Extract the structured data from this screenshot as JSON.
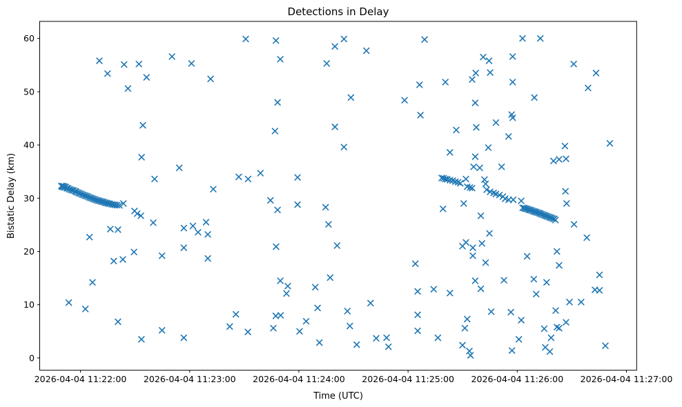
{
  "figure": {
    "title": "Detections in Delay"
  },
  "chart_data": {
    "type": "scatter",
    "title": "Detections in Delay",
    "xlabel": "Time (UTC)",
    "ylabel": "Bistatic Delay (km)",
    "grid": false,
    "legend": null,
    "marker": {
      "style": "x",
      "color": "#1f77b4",
      "size": 9,
      "stroke_width": 1.6
    },
    "x_axis": {
      "unit": "seconds after 2026-04-04 11:22:00 UTC",
      "tick_seconds": [
        0,
        60,
        120,
        180,
        240,
        300
      ],
      "tick_labels": [
        "2026-04-04 11:22:00",
        "2026-04-04 11:23:00",
        "2026-04-04 11:24:00",
        "2026-04-04 11:25:00",
        "2026-04-04 11:26:00",
        "2026-04-04 11:27:00"
      ],
      "lim_seconds": [
        -22.4,
        305.6
      ]
    },
    "y_axis": {
      "ticks": [
        0,
        10,
        20,
        30,
        40,
        50,
        60
      ],
      "tick_labels": [
        "0",
        "10",
        "20",
        "30",
        "40",
        "50",
        "60"
      ],
      "lim": [
        -2.3,
        63.2
      ]
    },
    "series": [
      {
        "name": "detections",
        "points_format": "[seconds_after_11:22:00, bistatic_delay_km]",
        "points": [
          [
            -10.5,
            32.3
          ],
          [
            -10.1,
            32.15
          ],
          [
            -9.7,
            32.3
          ],
          [
            -9.3,
            32.1
          ],
          [
            -8.9,
            32.2
          ],
          [
            -8.5,
            32.0
          ],
          [
            -8.1,
            32.1
          ],
          [
            -7.4,
            31.9
          ],
          [
            -6.9,
            31.85
          ],
          [
            -6.1,
            31.7
          ],
          [
            -5.3,
            31.6
          ],
          [
            -4.5,
            31.5
          ],
          [
            -3.7,
            31.45
          ],
          [
            -2.9,
            31.3
          ],
          [
            -2.3,
            31.2
          ],
          [
            -1.5,
            31.05
          ],
          [
            -0.7,
            30.95
          ],
          [
            0.1,
            30.85
          ],
          [
            0.9,
            30.7
          ],
          [
            1.7,
            30.6
          ],
          [
            2.5,
            30.5
          ],
          [
            3.3,
            30.4
          ],
          [
            4.1,
            30.3
          ],
          [
            4.9,
            30.15
          ],
          [
            5.7,
            30.05
          ],
          [
            6.5,
            29.95
          ],
          [
            7.3,
            29.85
          ],
          [
            8.1,
            29.75
          ],
          [
            8.9,
            29.65
          ],
          [
            9.7,
            29.55
          ],
          [
            10.5,
            29.5
          ],
          [
            11.3,
            29.4
          ],
          [
            12.1,
            29.35
          ],
          [
            12.9,
            29.25
          ],
          [
            13.7,
            29.15
          ],
          [
            14.5,
            29.1
          ],
          [
            15.3,
            29.0
          ],
          [
            16.1,
            28.95
          ],
          [
            17.1,
            28.85
          ],
          [
            18.1,
            28.8
          ],
          [
            19.1,
            28.75
          ],
          [
            20.1,
            28.7
          ],
          [
            21.4,
            28.65
          ],
          [
            23.6,
            29.0
          ],
          [
            10.4,
            55.8
          ],
          [
            14.9,
            53.4
          ],
          [
            24.0,
            55.1
          ],
          [
            32.1,
            55.2
          ],
          [
            50.3,
            56.6
          ],
          [
            36.3,
            52.7
          ],
          [
            26.1,
            50.6
          ],
          [
            34.3,
            43.7
          ],
          [
            33.6,
            37.7
          ],
          [
            54.3,
            35.7
          ],
          [
            40.7,
            33.6
          ],
          [
            61.0,
            55.3
          ],
          [
            71.5,
            52.4
          ],
          [
            29.7,
            27.6
          ],
          [
            31.2,
            27.1
          ],
          [
            33.2,
            26.7
          ],
          [
            40.0,
            25.4
          ],
          [
            56.8,
            24.4
          ],
          [
            16.4,
            24.2
          ],
          [
            20.6,
            24.1
          ],
          [
            5.0,
            22.7
          ],
          [
            56.8,
            20.7
          ],
          [
            29.4,
            19.9
          ],
          [
            44.8,
            19.2
          ],
          [
            23.3,
            18.5
          ],
          [
            18.3,
            18.2
          ],
          [
            6.6,
            14.2
          ],
          [
            -6.4,
            10.4
          ],
          [
            2.7,
            9.2
          ],
          [
            20.6,
            6.8
          ],
          [
            33.5,
            3.5
          ],
          [
            44.8,
            5.2
          ],
          [
            56.8,
            3.8
          ],
          [
            90.8,
            59.9
          ],
          [
            107.4,
            59.6
          ],
          [
            139.8,
            58.5
          ],
          [
            109.8,
            56.1
          ],
          [
            135.3,
            55.3
          ],
          [
            108.3,
            48.0
          ],
          [
            106.9,
            42.6
          ],
          [
            139.8,
            43.4
          ],
          [
            98.9,
            34.7
          ],
          [
            87.0,
            34.0
          ],
          [
            92.1,
            33.6
          ],
          [
            119.3,
            33.9
          ],
          [
            73.0,
            31.7
          ],
          [
            104.4,
            29.6
          ],
          [
            119.3,
            28.8
          ],
          [
            108.3,
            27.8
          ],
          [
            134.7,
            28.3
          ],
          [
            136.3,
            25.1
          ],
          [
            61.8,
            24.8
          ],
          [
            69.0,
            25.5
          ],
          [
            64.6,
            23.6
          ],
          [
            70.0,
            23.2
          ],
          [
            70.0,
            18.7
          ],
          [
            107.5,
            20.9
          ],
          [
            141.0,
            21.1
          ],
          [
            109.8,
            14.5
          ],
          [
            113.9,
            13.5
          ],
          [
            113.2,
            12.1
          ],
          [
            137.2,
            15.1
          ],
          [
            129.0,
            13.3
          ],
          [
            130.3,
            9.4
          ],
          [
            85.4,
            8.2
          ],
          [
            107.3,
            7.9
          ],
          [
            110.0,
            8.0
          ],
          [
            124.0,
            6.9
          ],
          [
            82.0,
            5.9
          ],
          [
            106.0,
            5.6
          ],
          [
            92.0,
            4.9
          ],
          [
            120.4,
            5.0
          ],
          [
            131.3,
            2.9
          ],
          [
            144.8,
            59.9
          ],
          [
            157.1,
            57.7
          ],
          [
            189.1,
            59.8
          ],
          [
            186.3,
            51.3
          ],
          [
            200.5,
            51.8
          ],
          [
            148.6,
            48.9
          ],
          [
            178.1,
            48.4
          ],
          [
            186.8,
            45.6
          ],
          [
            216.9,
            47.9
          ],
          [
            206.5,
            42.8
          ],
          [
            217.5,
            43.3
          ],
          [
            144.8,
            39.6
          ],
          [
            203.0,
            38.6
          ],
          [
            216.9,
            37.8
          ],
          [
            216.0,
            35.9
          ],
          [
            219.4,
            35.7
          ],
          [
            221.3,
            56.5
          ],
          [
            217.2,
            53.5
          ],
          [
            215.2,
            52.3
          ],
          [
            198.5,
            33.8
          ],
          [
            199.5,
            33.75
          ],
          [
            200.5,
            33.6
          ],
          [
            201.5,
            33.55
          ],
          [
            203.0,
            33.4
          ],
          [
            204.5,
            33.3
          ],
          [
            206.0,
            33.1
          ],
          [
            207.5,
            33.0
          ],
          [
            208.7,
            32.8
          ],
          [
            211.8,
            33.6
          ],
          [
            212.5,
            32.15
          ],
          [
            214.0,
            32.0
          ],
          [
            215.2,
            31.9
          ],
          [
            222.0,
            33.5
          ],
          [
            222.6,
            32.7
          ],
          [
            223.2,
            31.6
          ],
          [
            225.1,
            31.2
          ],
          [
            227.0,
            31.0
          ],
          [
            228.3,
            30.8
          ],
          [
            230.2,
            30.6
          ],
          [
            232.1,
            30.3
          ],
          [
            233.4,
            29.9
          ],
          [
            235.3,
            29.7
          ],
          [
            237.8,
            29.7
          ],
          [
            242.2,
            29.5
          ],
          [
            243.0,
            28.2
          ],
          [
            243.8,
            28.15
          ],
          [
            244.5,
            28.05
          ],
          [
            245.2,
            28.0
          ],
          [
            246.0,
            27.9
          ],
          [
            246.7,
            27.8
          ],
          [
            247.4,
            27.75
          ],
          [
            248.2,
            27.65
          ],
          [
            249.0,
            27.55
          ],
          [
            249.7,
            27.45
          ],
          [
            250.4,
            27.4
          ],
          [
            251.2,
            27.3
          ],
          [
            252.0,
            27.2
          ],
          [
            252.7,
            27.1
          ],
          [
            253.4,
            27.0
          ],
          [
            254.2,
            26.9
          ],
          [
            255.0,
            26.8
          ],
          [
            255.7,
            26.7
          ],
          [
            256.4,
            26.6
          ],
          [
            257.2,
            26.5
          ],
          [
            258.0,
            26.4
          ],
          [
            258.7,
            26.3
          ],
          [
            259.5,
            26.2
          ],
          [
            260.3,
            26.1
          ],
          [
            261.0,
            25.9
          ],
          [
            242.9,
            60.0
          ],
          [
            252.7,
            60.0
          ],
          [
            224.5,
            55.8
          ],
          [
            237.5,
            56.6
          ],
          [
            271.0,
            55.2
          ],
          [
            225.1,
            53.6
          ],
          [
            283.3,
            53.5
          ],
          [
            237.5,
            51.8
          ],
          [
            278.9,
            50.7
          ],
          [
            249.4,
            48.9
          ],
          [
            236.9,
            45.7
          ],
          [
            237.5,
            45.1
          ],
          [
            228.3,
            44.2
          ],
          [
            235.2,
            41.6
          ],
          [
            224.1,
            39.5
          ],
          [
            266.2,
            39.8
          ],
          [
            290.9,
            40.3
          ],
          [
            259.9,
            37.0
          ],
          [
            263.0,
            37.3
          ],
          [
            266.8,
            37.4
          ],
          [
            231.4,
            35.9
          ],
          [
            266.5,
            31.3
          ],
          [
            199.2,
            28.0
          ],
          [
            210.6,
            29.0
          ],
          [
            220.0,
            26.7
          ],
          [
            267.1,
            29.0
          ],
          [
            271.2,
            25.1
          ],
          [
            278.2,
            22.6
          ],
          [
            224.7,
            23.4
          ],
          [
            211.8,
            21.7
          ],
          [
            209.9,
            21.0
          ],
          [
            215.6,
            20.7
          ],
          [
            220.6,
            21.5
          ],
          [
            215.6,
            19.2
          ],
          [
            222.6,
            17.9
          ],
          [
            245.4,
            19.1
          ],
          [
            261.8,
            20.0
          ],
          [
            263.0,
            17.4
          ],
          [
            232.7,
            14.6
          ],
          [
            249.1,
            14.8
          ],
          [
            256.1,
            14.2
          ],
          [
            250.4,
            12.0
          ],
          [
            285.2,
            15.6
          ],
          [
            282.7,
            12.8
          ],
          [
            285.2,
            12.7
          ],
          [
            268.7,
            10.5
          ],
          [
            275.1,
            10.5
          ],
          [
            225.7,
            8.7
          ],
          [
            236.5,
            8.6
          ],
          [
            261.1,
            8.9
          ],
          [
            242.2,
            7.1
          ],
          [
            266.8,
            6.7
          ],
          [
            254.8,
            5.5
          ],
          [
            261.8,
            5.8
          ],
          [
            263.0,
            5.6
          ],
          [
            240.9,
            3.5
          ],
          [
            258.6,
            3.8
          ],
          [
            237.1,
            1.4
          ],
          [
            255.4,
            2.0
          ],
          [
            257.9,
            1.2
          ],
          [
            288.4,
            2.3
          ],
          [
            216.9,
            14.5
          ],
          [
            220.0,
            13.0
          ],
          [
            212.5,
            7.3
          ],
          [
            211.2,
            5.6
          ],
          [
            209.9,
            2.4
          ],
          [
            213.7,
            1.3
          ],
          [
            214.3,
            0.5
          ],
          [
            185.3,
            12.5
          ],
          [
            194.1,
            12.9
          ],
          [
            203.0,
            12.2
          ],
          [
            159.4,
            10.3
          ],
          [
            146.7,
            8.8
          ],
          [
            185.3,
            8.1
          ],
          [
            148.0,
            6.0
          ],
          [
            185.3,
            5.1
          ],
          [
            162.5,
            3.7
          ],
          [
            168.2,
            3.8
          ],
          [
            169.2,
            2.1
          ],
          [
            151.8,
            2.5
          ],
          [
            196.4,
            3.8
          ],
          [
            184.0,
            17.7
          ]
        ]
      }
    ]
  }
}
